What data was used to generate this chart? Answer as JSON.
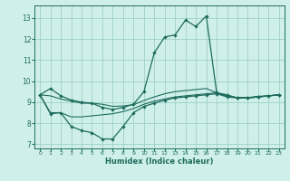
{
  "xlabel": "Humidex (Indice chaleur)",
  "bg_color": "#cff0ea",
  "grid_color": "#9ecfc7",
  "line_color": "#1e6b5e",
  "xlim": [
    -0.5,
    23.5
  ],
  "ylim": [
    6.8,
    13.6
  ],
  "yticks": [
    7,
    8,
    9,
    10,
    11,
    12,
    13
  ],
  "xticks": [
    0,
    1,
    2,
    3,
    4,
    5,
    6,
    7,
    8,
    9,
    10,
    11,
    12,
    13,
    14,
    15,
    16,
    17,
    18,
    19,
    20,
    21,
    22,
    23
  ],
  "series1_x": [
    0,
    1,
    2,
    3,
    4,
    5,
    6,
    7,
    8,
    9,
    10,
    11,
    12,
    13,
    14,
    15,
    16,
    17,
    18,
    19,
    20,
    21,
    22,
    23
  ],
  "series1_y": [
    9.35,
    9.65,
    9.3,
    9.1,
    9.0,
    8.95,
    8.75,
    8.65,
    8.75,
    8.9,
    9.5,
    11.35,
    12.1,
    12.2,
    12.9,
    12.6,
    13.1,
    9.45,
    9.35,
    9.2,
    9.2,
    9.25,
    9.3,
    9.35
  ],
  "series2_x": [
    0,
    1,
    2,
    3,
    4,
    5,
    6,
    7,
    8,
    9,
    10,
    11,
    12,
    13,
    14,
    15,
    16,
    17,
    18,
    19,
    20,
    21,
    22,
    23
  ],
  "series2_y": [
    9.35,
    8.45,
    8.5,
    7.85,
    7.65,
    7.55,
    7.25,
    7.25,
    7.85,
    8.5,
    8.8,
    8.95,
    9.1,
    9.2,
    9.25,
    9.3,
    9.35,
    9.4,
    9.25,
    9.2,
    9.2,
    9.25,
    9.3,
    9.35
  ],
  "series3_x": [
    0,
    1,
    2,
    3,
    4,
    5,
    6,
    7,
    8,
    9,
    10,
    11,
    12,
    13,
    14,
    15,
    16,
    17,
    18,
    19,
    20,
    21,
    22,
    23
  ],
  "series3_y": [
    9.35,
    8.5,
    8.5,
    8.3,
    8.3,
    8.35,
    8.4,
    8.45,
    8.55,
    8.7,
    8.9,
    9.05,
    9.15,
    9.25,
    9.3,
    9.35,
    9.4,
    9.45,
    9.28,
    9.22,
    9.22,
    9.25,
    9.3,
    9.35
  ],
  "series4_x": [
    0,
    1,
    2,
    3,
    4,
    5,
    6,
    7,
    8,
    9,
    10,
    11,
    12,
    13,
    14,
    15,
    16,
    17,
    18,
    19,
    20,
    21,
    22,
    23
  ],
  "series4_y": [
    9.35,
    9.3,
    9.15,
    9.05,
    8.95,
    8.95,
    8.9,
    8.8,
    8.82,
    8.88,
    9.08,
    9.25,
    9.4,
    9.5,
    9.55,
    9.6,
    9.65,
    9.45,
    9.28,
    9.22,
    9.22,
    9.28,
    9.3,
    9.35
  ]
}
